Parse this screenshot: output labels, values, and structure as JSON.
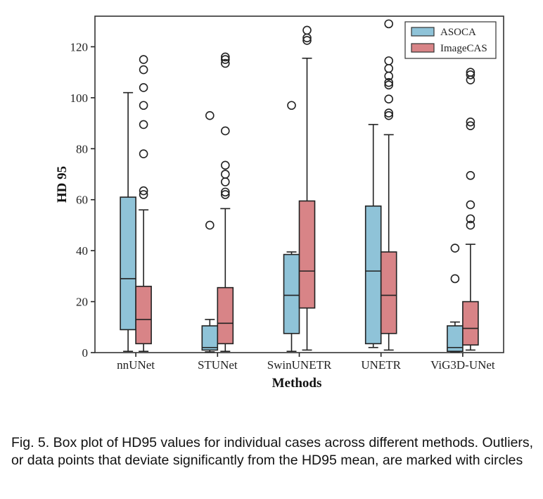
{
  "chart_data": {
    "type": "box",
    "xlabel": "Methods",
    "ylabel": "HD 95",
    "ylim": [
      0,
      132
    ],
    "yticks": [
      0,
      20,
      40,
      60,
      80,
      100,
      120
    ],
    "categories": [
      "nnUNet",
      "STUNet",
      "SwinUNETR",
      "UNETR",
      "ViG3D-UNet"
    ],
    "legend": {
      "position": "top-right",
      "entries": [
        "ASOCA",
        "ImageCAS"
      ]
    },
    "colors": {
      "ASOCA": "#8fc3d8",
      "ImageCAS": "#d88487"
    },
    "series": [
      {
        "name": "ASOCA",
        "boxes": [
          {
            "whislo": 0.5,
            "q1": 9,
            "med": 29,
            "q3": 61,
            "whishi": 102,
            "fliers": []
          },
          {
            "whislo": 0.3,
            "q1": 1,
            "med": 2,
            "q3": 10.5,
            "whishi": 13,
            "fliers": [
              50,
              93
            ]
          },
          {
            "whislo": 0.5,
            "q1": 7.5,
            "med": 22.5,
            "q3": 38.5,
            "whishi": 39.5,
            "fliers": [
              97
            ]
          },
          {
            "whislo": 2,
            "q1": 3.5,
            "med": 32,
            "q3": 57.5,
            "whishi": 89.5,
            "fliers": []
          },
          {
            "whislo": 0.3,
            "q1": 0.5,
            "med": 2,
            "q3": 10.5,
            "whishi": 12,
            "fliers": [
              29,
              41
            ]
          }
        ]
      },
      {
        "name": "ImageCAS",
        "boxes": [
          {
            "whislo": 0.5,
            "q1": 3.5,
            "med": 13,
            "q3": 26,
            "whishi": 56,
            "fliers": [
              62,
              63.5,
              78,
              89.5,
              97,
              104,
              111,
              115
            ]
          },
          {
            "whislo": 0.5,
            "q1": 3.5,
            "med": 11.5,
            "q3": 25.5,
            "whishi": 56.5,
            "fliers": [
              62,
              63,
              67,
              70,
              73.5,
              87,
              113.5,
              115,
              116
            ]
          },
          {
            "whislo": 1,
            "q1": 17.5,
            "med": 32,
            "q3": 59.5,
            "whishi": 115.5,
            "fliers": [
              122.5,
              123.5,
              126.5
            ]
          },
          {
            "whislo": 1,
            "q1": 7.5,
            "med": 22.5,
            "q3": 39.5,
            "whishi": 85.5,
            "fliers": [
              93,
              94,
              99.5,
              105,
              106,
              108.5,
              111.5,
              114.5,
              129
            ]
          },
          {
            "whislo": 1,
            "q1": 3,
            "med": 9.5,
            "q3": 20,
            "whishi": 42.5,
            "fliers": [
              50,
              52.5,
              58,
              69.5,
              89,
              90.5,
              107,
              109,
              110
            ]
          }
        ]
      }
    ]
  },
  "caption": "Fig. 5.   Box plot of HD95 values for individual cases across different methods. Outliers, or data points that deviate significantly from the HD95 mean, are marked with circles"
}
